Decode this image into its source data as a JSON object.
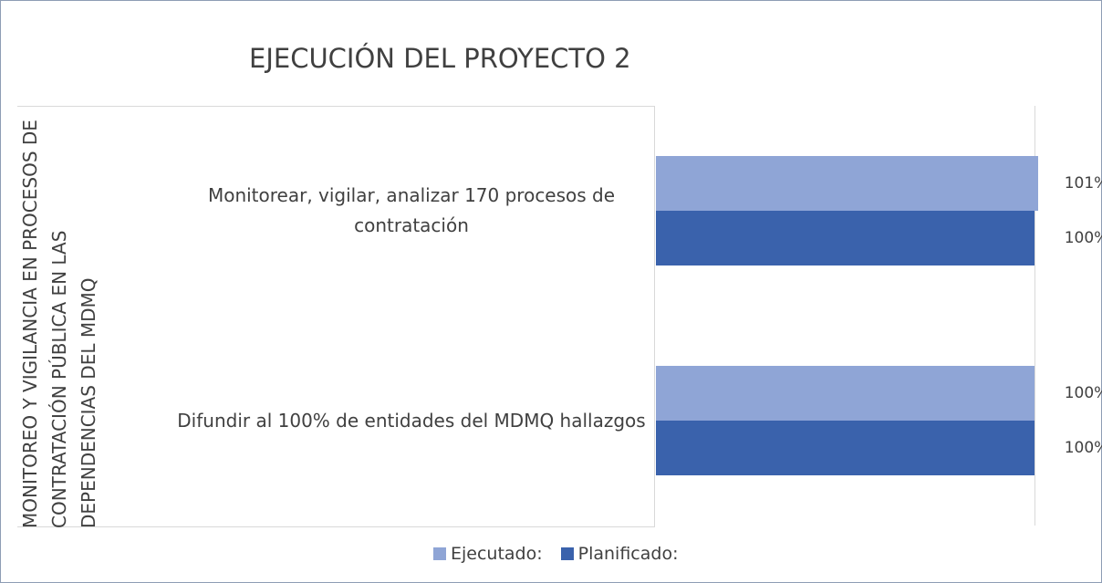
{
  "chart_data": {
    "type": "bar",
    "orientation": "horizontal",
    "title": "EJECUCIÓN DEL PROYECTO 2",
    "ylabel": "MONITOREO Y VIGILANCIA EN PROCESOS DE CONTRATACIÓN PÚBLICA EN LAS DEPENDENCIAS DEL MDMQ",
    "categories": [
      "Monitorear, vigilar, analizar 170 procesos de contratación",
      "Difundir al 100% de entidades del MDMQ hallazgos"
    ],
    "series": [
      {
        "name": "Ejecutado:",
        "color": "#8fa5d6",
        "values": [
          101,
          100
        ],
        "value_labels": [
          "101%",
          "100%"
        ]
      },
      {
        "name": "Planificado:",
        "color": "#3a62ac",
        "values": [
          100,
          100
        ],
        "value_labels": [
          "100%",
          "100%"
        ]
      }
    ],
    "xlim": [
      0,
      100
    ],
    "legend": "bottom"
  }
}
